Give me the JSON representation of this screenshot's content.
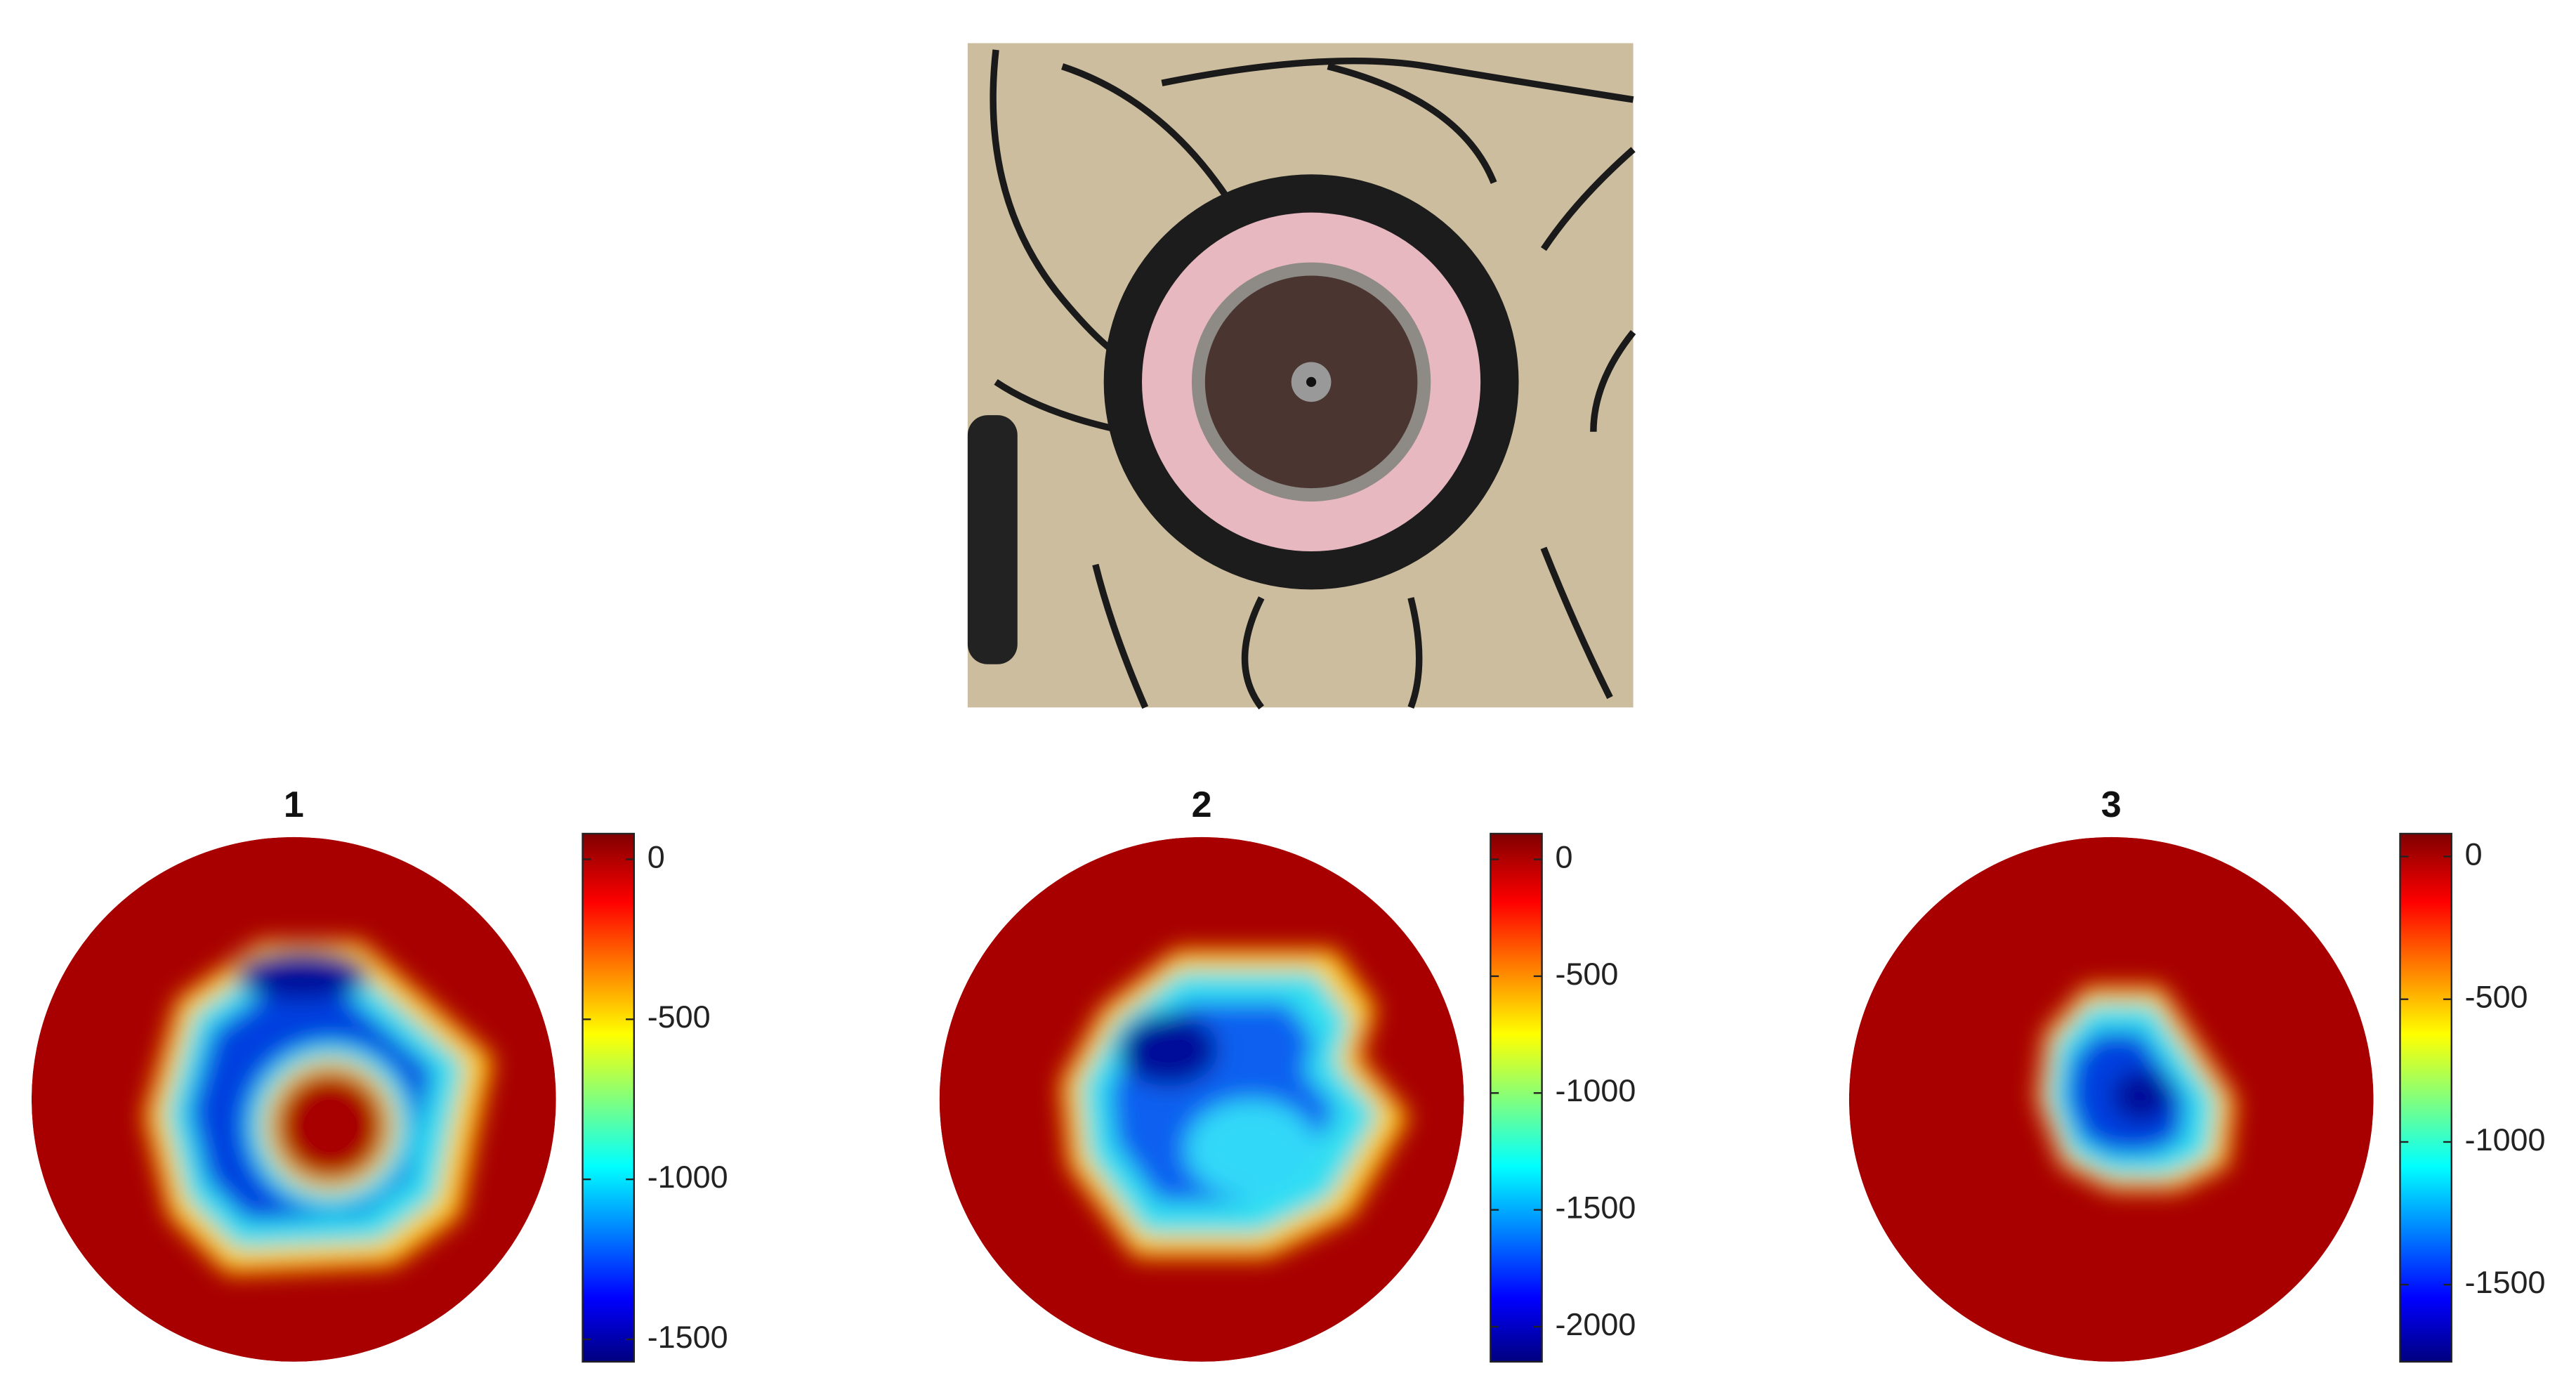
{
  "chart_data": [
    {
      "type": "heatmap",
      "title": "1",
      "clim": [
        -1570,
        80
      ],
      "cticks": [
        0,
        -500,
        -1000,
        -1500
      ]
    },
    {
      "type": "heatmap",
      "title": "2",
      "clim": [
        -2150,
        110
      ],
      "cticks": [
        0,
        -500,
        -1000,
        -1500,
        -2000
      ]
    },
    {
      "type": "heatmap",
      "title": "3",
      "clim": [
        -1770,
        80
      ],
      "cticks": [
        0,
        -500,
        -1000,
        -1500
      ]
    }
  ]
}
